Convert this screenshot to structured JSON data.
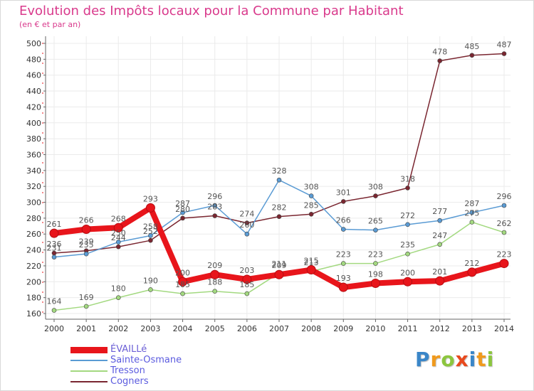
{
  "title": "Evolution des Impôts locaux pour la Commune par Habitant",
  "subtitle": "(en € et par an)",
  "logo": {
    "letters": [
      "P",
      "r",
      "o",
      "x",
      "i",
      "t",
      "i"
    ],
    "colors": [
      "#3a86c8",
      "#f09a1d",
      "#8cc63e",
      "#e8491d",
      "#3a86c8",
      "#f09a1d",
      "#8cc63e"
    ]
  },
  "colors": {
    "title": "#d93a8c",
    "axis": "#666666",
    "grid": "#ebebeb",
    "tick_text": "#333333"
  },
  "chart_data": {
    "type": "line",
    "x": [
      "2000",
      "2001",
      "2002",
      "2003",
      "2004",
      "2005",
      "2006",
      "2007",
      "2008",
      "2009",
      "2010",
      "2011",
      "2012",
      "2013",
      "2014"
    ],
    "y_ticks": [
      "160",
      "180",
      "200",
      "220",
      "240",
      "260",
      "280",
      "300",
      "320",
      "340",
      "360",
      "380",
      "400",
      "420",
      "440",
      "460",
      "480",
      "500"
    ],
    "ylim": [
      160,
      500
    ],
    "grid": true,
    "legend_position": "bottom-left",
    "series": [
      {
        "name": "ÉVAILLé",
        "color": "#e8151b",
        "stroke_width": 8,
        "values": [
          261,
          266,
          268,
          293,
          200,
          209,
          203,
          209,
          215,
          193,
          198,
          200,
          201,
          212,
          223
        ],
        "labels": [
          "261",
          "266",
          "268",
          "293",
          "200",
          "209",
          "203",
          "209",
          "215",
          "193",
          "198",
          "200",
          "201",
          "212",
          "223"
        ]
      },
      {
        "name": "Sainte-Osmane",
        "color": "#5a9bd4",
        "stroke_width": 1.5,
        "values": [
          231,
          235,
          250,
          258,
          287,
          296,
          260,
          328,
          308,
          266,
          265,
          272,
          277,
          287,
          296
        ],
        "labels": [
          "231",
          "235",
          "250",
          "258",
          "287",
          "296",
          "260",
          "328",
          "308",
          "266",
          "265",
          "272",
          "277",
          "287",
          "296"
        ]
      },
      {
        "name": "Tresson",
        "color": "#a3d980",
        "stroke_width": 1.5,
        "values": [
          164,
          169,
          180,
          190,
          185,
          188,
          185,
          211,
          213,
          223,
          223,
          235,
          247,
          275,
          262
        ],
        "labels": [
          "164",
          "169",
          "180",
          "190",
          "185",
          "188",
          "185",
          "211",
          "213",
          "223",
          "223",
          "235",
          "247",
          "275",
          "262"
        ]
      },
      {
        "name": "Cogners",
        "color": "#7a2630",
        "stroke_width": 1.5,
        "values": [
          236,
          239,
          244,
          252,
          280,
          283,
          274,
          282,
          285,
          301,
          308,
          318,
          478,
          485,
          487
        ],
        "labels": [
          "236",
          "239",
          "244",
          "252",
          "280",
          "283",
          "274",
          "282",
          "285",
          "301",
          "308",
          "318",
          "478",
          "485",
          "487"
        ]
      }
    ]
  }
}
